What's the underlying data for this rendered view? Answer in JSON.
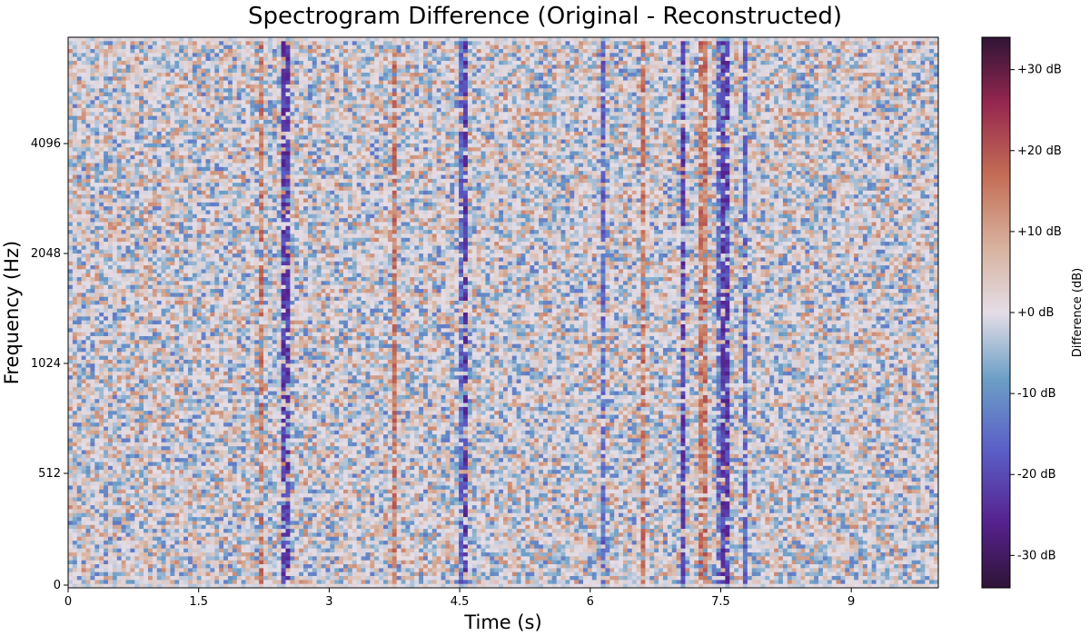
{
  "chart_data": {
    "type": "heatmap",
    "title": "Spectrogram Difference (Original - Reconstructed)",
    "xlabel": "Time (s)",
    "ylabel": "Frequency (Hz)",
    "x_ticks": [
      0,
      1.5,
      3,
      4.5,
      6,
      7.5,
      9
    ],
    "x_tick_labels": [
      "0",
      "1.5",
      "3",
      "4.5",
      "6",
      "7.5",
      "9"
    ],
    "xlim": [
      0,
      10
    ],
    "y_ticks": [
      0,
      512,
      1024,
      2048,
      4096
    ],
    "y_tick_labels": [
      "0",
      "512",
      "1024",
      "2048",
      "4096"
    ],
    "y_scale": "symlog-like (linear below 512 Hz, logarithmic above)",
    "ylim": [
      0,
      8000
    ],
    "grid": false,
    "colorbar": {
      "label": "Difference (dB)",
      "range": [
        -34,
        34
      ],
      "ticks": [
        30,
        20,
        10,
        0,
        -10,
        -20,
        -30
      ],
      "tick_labels": [
        "+30 dB",
        "+20 dB",
        "+10 dB",
        "+0 dB",
        "-10 dB",
        "-20 dB",
        "-30 dB"
      ],
      "colormap": "twilight_shifted"
    },
    "description_values": {
      "time_columns": 196,
      "frequency_rows": 140,
      "value_range_db": [
        -34,
        34
      ],
      "notable_vertical_streaks_seconds": [
        2.2,
        2.5,
        3.75,
        4.5,
        4.55,
        6.15,
        6.6,
        7.05,
        7.3,
        7.5,
        7.55,
        7.8
      ]
    }
  }
}
